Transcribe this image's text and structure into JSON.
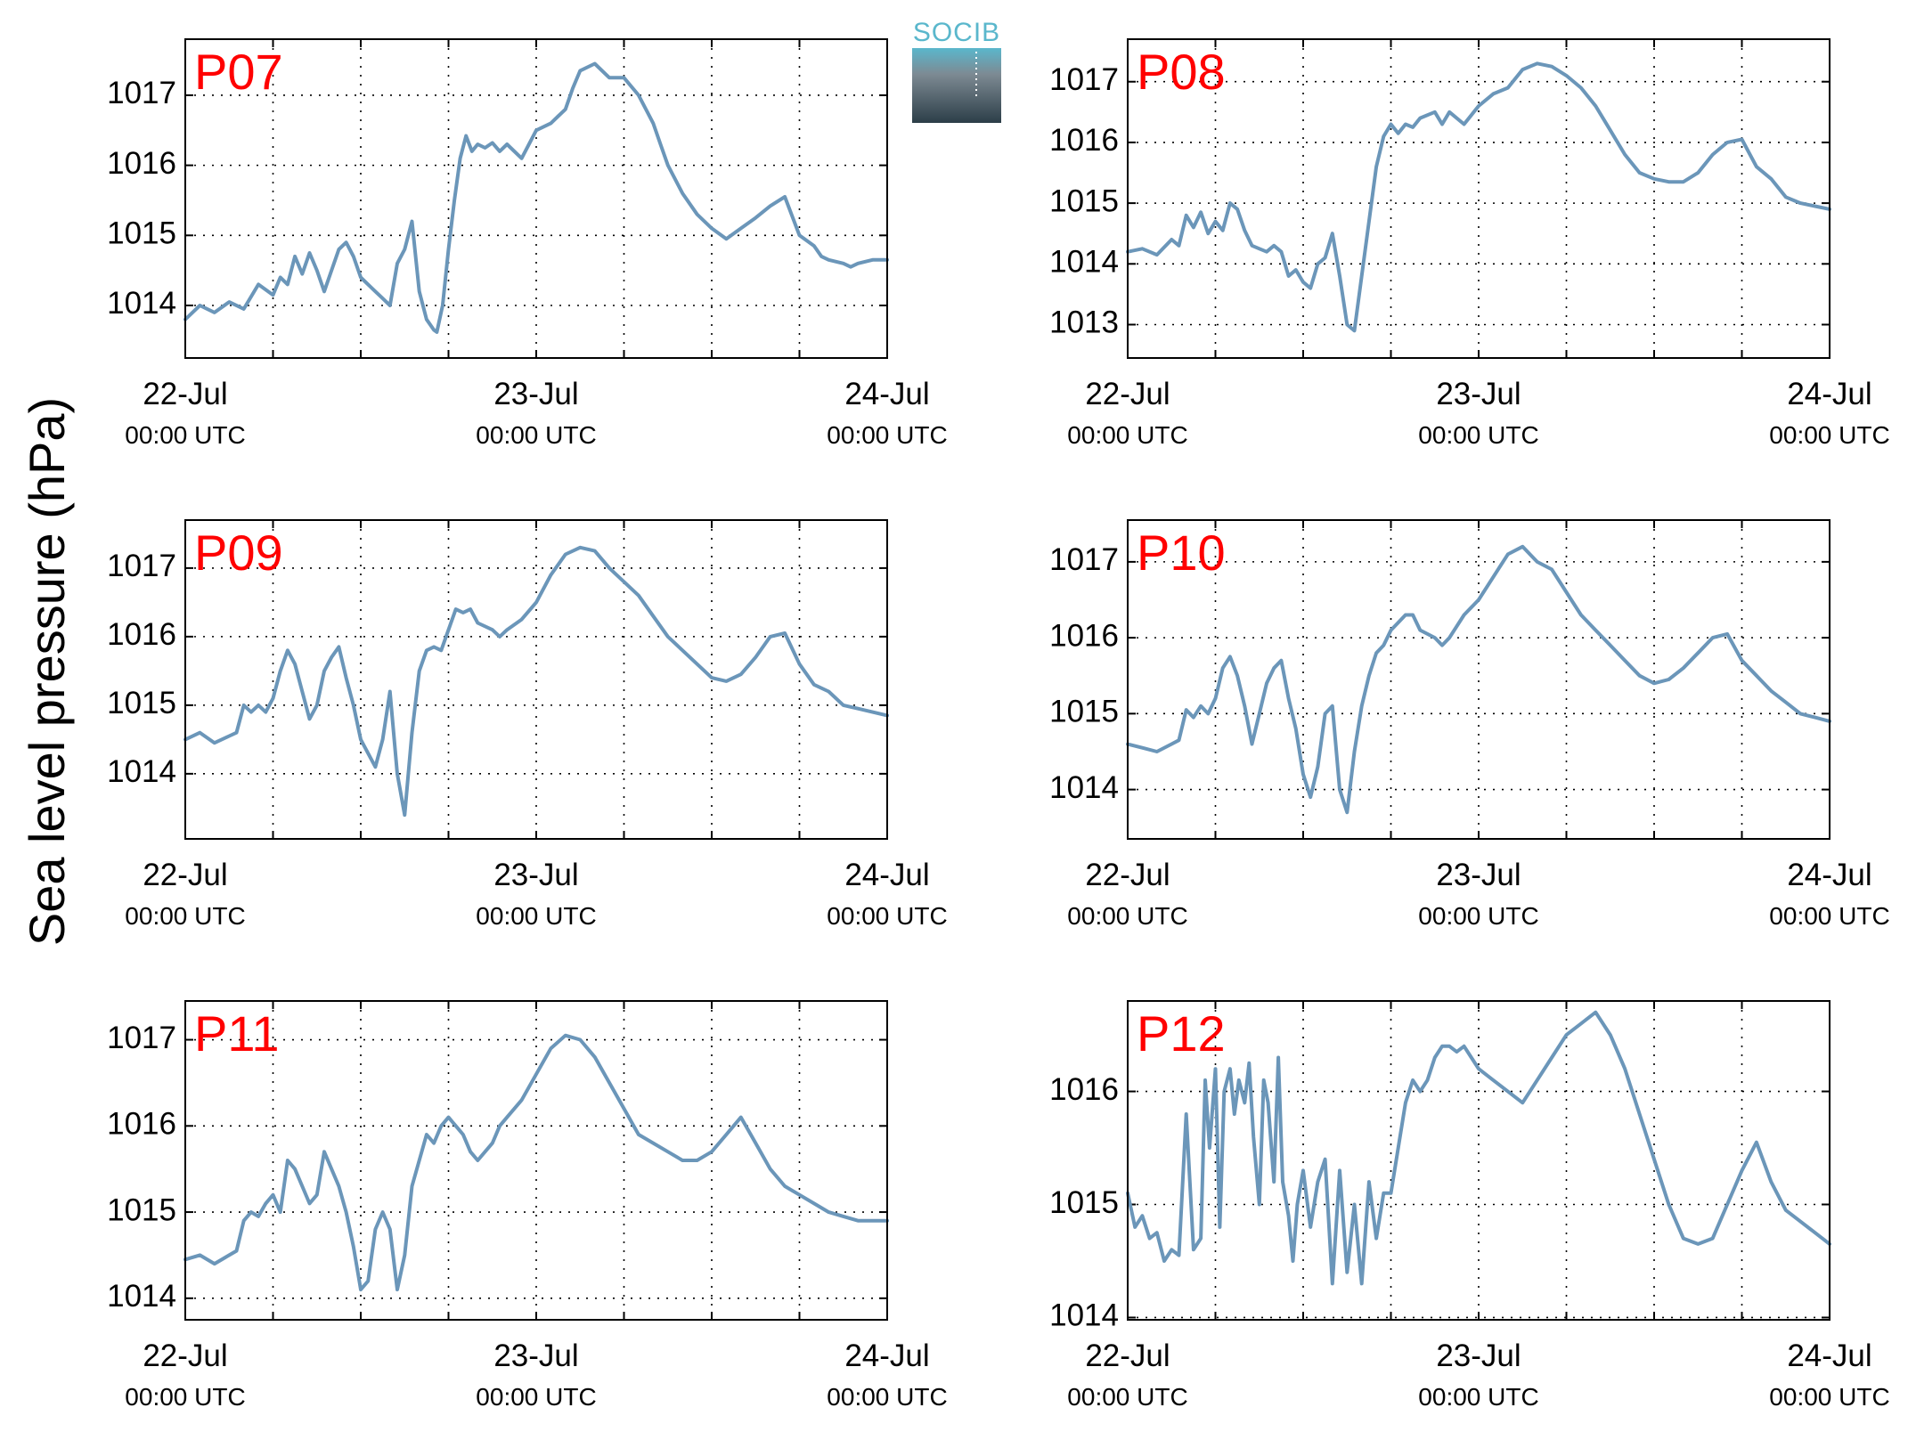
{
  "figure": {
    "ylabel": "Sea level pressure (hPa)",
    "logo": {
      "text": "SOCIB",
      "colors": [
        "#5ab7cc",
        "#7d8a93",
        "#2c3e48"
      ]
    }
  },
  "chart_data": [
    {
      "type": "line",
      "panel_label": "P07",
      "xlim": [
        0,
        48
      ],
      "ylim": [
        1013.25,
        1017.8
      ],
      "yticks": [
        1014,
        1015,
        1016,
        1017
      ],
      "xticks": [
        {
          "t": 0,
          "date": "22-Jul",
          "time": "00:00 UTC"
        },
        {
          "t": 24,
          "date": "23-Jul",
          "time": "00:00 UTC"
        },
        {
          "t": 48,
          "date": "24-Jul",
          "time": "00:00 UTC"
        }
      ],
      "xgrid_hours": [
        6,
        12,
        18,
        24,
        30,
        36,
        42
      ],
      "grid": true,
      "color": "#6b96b9",
      "x": [
        0,
        1,
        2,
        3,
        4,
        5,
        6,
        6.5,
        7,
        7.5,
        8,
        8.5,
        9,
        9.5,
        10,
        10.5,
        11,
        11.5,
        12,
        12.5,
        13,
        13.5,
        14,
        14.5,
        15,
        15.5,
        16,
        16.5,
        17,
        17.2,
        17.6,
        18,
        18.4,
        18.8,
        19.2,
        19.6,
        20,
        20.5,
        21,
        21.5,
        22,
        23,
        24,
        25,
        25.5,
        26,
        26.5,
        27,
        28,
        29,
        30,
        31,
        32,
        32.5,
        33,
        34,
        35,
        36,
        37,
        38,
        39,
        40,
        41,
        42,
        43,
        43.5,
        44,
        45,
        45.5,
        46,
        47,
        48
      ],
      "values": [
        1013.8,
        1014.0,
        1013.9,
        1014.05,
        1013.95,
        1014.3,
        1014.15,
        1014.4,
        1014.3,
        1014.7,
        1014.45,
        1014.75,
        1014.5,
        1014.2,
        1014.5,
        1014.8,
        1014.9,
        1014.7,
        1014.4,
        1014.3,
        1014.2,
        1014.1,
        1014.0,
        1014.6,
        1014.8,
        1015.2,
        1014.2,
        1013.8,
        1013.65,
        1013.62,
        1014.0,
        1014.8,
        1015.5,
        1016.1,
        1016.42,
        1016.2,
        1016.3,
        1016.25,
        1016.32,
        1016.2,
        1016.3,
        1016.1,
        1016.5,
        1016.6,
        1016.7,
        1016.8,
        1017.1,
        1017.35,
        1017.45,
        1017.25,
        1017.25,
        1017.0,
        1016.6,
        1016.3,
        1016.0,
        1015.6,
        1015.3,
        1015.1,
        1014.95,
        1015.1,
        1015.25,
        1015.42,
        1015.55,
        1015.0,
        1014.85,
        1014.7,
        1014.65,
        1014.6,
        1014.55,
        1014.6,
        1014.65,
        1014.65
      ]
    },
    {
      "type": "line",
      "panel_label": "P08",
      "xlim": [
        0,
        48
      ],
      "ylim": [
        1012.45,
        1017.7
      ],
      "yticks": [
        1013,
        1014,
        1015,
        1016,
        1017
      ],
      "xticks": [
        {
          "t": 0,
          "date": "22-Jul",
          "time": "00:00 UTC"
        },
        {
          "t": 24,
          "date": "23-Jul",
          "time": "00:00 UTC"
        },
        {
          "t": 48,
          "date": "24-Jul",
          "time": "00:00 UTC"
        }
      ],
      "xgrid_hours": [
        6,
        12,
        18,
        24,
        30,
        36,
        42
      ],
      "grid": true,
      "color": "#6b96b9",
      "x": [
        0,
        1,
        2,
        3,
        3.5,
        4,
        4.5,
        5,
        5.5,
        6,
        6.5,
        7,
        7.5,
        8,
        8.5,
        9,
        9.5,
        10,
        10.5,
        11,
        11.5,
        12,
        12.5,
        13,
        13.5,
        14,
        14.5,
        15,
        15.5,
        16,
        16.5,
        17,
        17.5,
        18,
        18.5,
        19,
        19.5,
        20,
        21,
        21.5,
        22,
        23,
        24,
        25,
        26,
        27,
        28,
        29,
        30,
        31,
        32,
        33,
        34,
        35,
        36,
        37,
        38,
        39,
        40,
        41,
        42,
        43,
        44,
        45,
        46,
        47,
        48
      ],
      "values": [
        1014.2,
        1014.25,
        1014.15,
        1014.4,
        1014.3,
        1014.8,
        1014.6,
        1014.85,
        1014.5,
        1014.7,
        1014.55,
        1015.0,
        1014.9,
        1014.55,
        1014.3,
        1014.25,
        1014.2,
        1014.3,
        1014.2,
        1013.8,
        1013.9,
        1013.7,
        1013.6,
        1014.0,
        1014.1,
        1014.5,
        1013.8,
        1013.0,
        1012.9,
        1013.8,
        1014.7,
        1015.6,
        1016.1,
        1016.3,
        1016.15,
        1016.3,
        1016.25,
        1016.4,
        1016.5,
        1016.3,
        1016.5,
        1016.3,
        1016.6,
        1016.8,
        1016.9,
        1017.2,
        1017.3,
        1017.25,
        1017.1,
        1016.9,
        1016.6,
        1016.2,
        1015.8,
        1015.5,
        1015.4,
        1015.35,
        1015.35,
        1015.5,
        1015.8,
        1016.0,
        1016.05,
        1015.6,
        1015.4,
        1015.1,
        1015.0,
        1014.95,
        1014.9
      ]
    },
    {
      "type": "line",
      "panel_label": "P09",
      "xlim": [
        0,
        48
      ],
      "ylim": [
        1013.05,
        1017.7
      ],
      "yticks": [
        1014,
        1015,
        1016,
        1017
      ],
      "xticks": [
        {
          "t": 0,
          "date": "22-Jul",
          "time": "00:00 UTC"
        },
        {
          "t": 24,
          "date": "23-Jul",
          "time": "00:00 UTC"
        },
        {
          "t": 48,
          "date": "24-Jul",
          "time": "00:00 UTC"
        }
      ],
      "xgrid_hours": [
        6,
        12,
        18,
        24,
        30,
        36,
        42
      ],
      "grid": true,
      "color": "#6b96b9",
      "x": [
        0,
        1,
        2,
        3,
        3.5,
        4,
        4.5,
        5,
        5.5,
        6,
        6.5,
        7,
        7.5,
        8,
        8.5,
        9,
        9.5,
        10,
        10.5,
        11,
        11.5,
        12,
        12.5,
        13,
        13.5,
        14,
        14.5,
        15,
        15.5,
        16,
        16.5,
        17,
        17.5,
        18,
        18.5,
        19,
        19.5,
        20,
        21,
        21.5,
        22,
        23,
        24,
        25,
        26,
        27,
        28,
        29,
        30,
        31,
        32,
        33,
        34,
        35,
        36,
        37,
        38,
        39,
        40,
        41,
        42,
        43,
        44,
        45,
        46,
        47,
        48
      ],
      "values": [
        1014.5,
        1014.6,
        1014.45,
        1014.55,
        1014.6,
        1015.0,
        1014.9,
        1015.0,
        1014.9,
        1015.1,
        1015.5,
        1015.8,
        1015.6,
        1015.2,
        1014.8,
        1015.0,
        1015.5,
        1015.7,
        1015.85,
        1015.4,
        1015.0,
        1014.5,
        1014.3,
        1014.1,
        1014.5,
        1015.2,
        1014.0,
        1013.4,
        1014.6,
        1015.5,
        1015.8,
        1015.85,
        1015.8,
        1016.1,
        1016.4,
        1016.35,
        1016.4,
        1016.2,
        1016.1,
        1016.0,
        1016.1,
        1016.25,
        1016.5,
        1016.9,
        1017.2,
        1017.3,
        1017.25,
        1017.0,
        1016.8,
        1016.6,
        1016.3,
        1016.0,
        1015.8,
        1015.6,
        1015.4,
        1015.35,
        1015.45,
        1015.7,
        1016.0,
        1016.05,
        1015.6,
        1015.3,
        1015.2,
        1015.0,
        1014.95,
        1014.9,
        1014.85
      ]
    },
    {
      "type": "line",
      "panel_label": "P10",
      "xlim": [
        0,
        48
      ],
      "ylim": [
        1013.35,
        1017.55
      ],
      "yticks": [
        1014,
        1015,
        1016,
        1017
      ],
      "xticks": [
        {
          "t": 0,
          "date": "22-Jul",
          "time": "00:00 UTC"
        },
        {
          "t": 24,
          "date": "23-Jul",
          "time": "00:00 UTC"
        },
        {
          "t": 48,
          "date": "24-Jul",
          "time": "00:00 UTC"
        }
      ],
      "xgrid_hours": [
        6,
        12,
        18,
        24,
        30,
        36,
        42
      ],
      "grid": true,
      "color": "#6b96b9",
      "x": [
        0,
        1,
        2,
        3,
        3.5,
        4,
        4.5,
        5,
        5.5,
        6,
        6.5,
        7,
        7.5,
        8,
        8.5,
        9,
        9.5,
        10,
        10.5,
        11,
        11.5,
        12,
        12.5,
        13,
        13.5,
        14,
        14.5,
        15,
        15.5,
        16,
        16.5,
        17,
        17.5,
        18,
        18.5,
        19,
        19.5,
        20,
        21,
        21.5,
        22,
        23,
        24,
        25,
        26,
        27,
        28,
        29,
        30,
        31,
        32,
        33,
        34,
        35,
        36,
        37,
        38,
        39,
        40,
        41,
        42,
        43,
        44,
        45,
        46,
        47,
        48
      ],
      "values": [
        1014.6,
        1014.55,
        1014.5,
        1014.6,
        1014.65,
        1015.05,
        1014.95,
        1015.1,
        1015.0,
        1015.2,
        1015.6,
        1015.75,
        1015.5,
        1015.1,
        1014.6,
        1015.0,
        1015.4,
        1015.6,
        1015.7,
        1015.2,
        1014.8,
        1014.2,
        1013.9,
        1014.3,
        1015.0,
        1015.1,
        1014.0,
        1013.7,
        1014.5,
        1015.1,
        1015.5,
        1015.8,
        1015.9,
        1016.1,
        1016.2,
        1016.3,
        1016.3,
        1016.1,
        1016.0,
        1015.9,
        1016.0,
        1016.3,
        1016.5,
        1016.8,
        1017.1,
        1017.2,
        1017.0,
        1016.9,
        1016.6,
        1016.3,
        1016.1,
        1015.9,
        1015.7,
        1015.5,
        1015.4,
        1015.45,
        1015.6,
        1015.8,
        1016.0,
        1016.05,
        1015.7,
        1015.5,
        1015.3,
        1015.15,
        1015.0,
        1014.95,
        1014.9
      ]
    },
    {
      "type": "line",
      "panel_label": "P11",
      "xlim": [
        0,
        48
      ],
      "ylim": [
        1013.75,
        1017.45
      ],
      "yticks": [
        1014,
        1015,
        1016,
        1017
      ],
      "xticks": [
        {
          "t": 0,
          "date": "22-Jul",
          "time": "00:00 UTC"
        },
        {
          "t": 24,
          "date": "23-Jul",
          "time": "00:00 UTC"
        },
        {
          "t": 48,
          "date": "24-Jul",
          "time": "00:00 UTC"
        }
      ],
      "xgrid_hours": [
        6,
        12,
        18,
        24,
        30,
        36,
        42
      ],
      "grid": true,
      "color": "#6b96b9",
      "x": [
        0,
        1,
        2,
        3,
        3.5,
        4,
        4.5,
        5,
        5.5,
        6,
        6.5,
        7,
        7.5,
        8,
        8.5,
        9,
        9.5,
        10,
        10.5,
        11,
        11.5,
        12,
        12.5,
        13,
        13.5,
        14,
        14.5,
        15,
        15.5,
        16,
        16.5,
        17,
        17.5,
        18,
        18.5,
        19,
        19.5,
        20,
        21,
        21.5,
        22,
        23,
        24,
        25,
        26,
        27,
        28,
        29,
        30,
        31,
        32,
        33,
        34,
        35,
        36,
        37,
        38,
        39,
        40,
        41,
        42,
        43,
        44,
        45,
        46,
        47,
        48
      ],
      "values": [
        1014.45,
        1014.5,
        1014.4,
        1014.5,
        1014.55,
        1014.9,
        1015.0,
        1014.95,
        1015.1,
        1015.2,
        1015.0,
        1015.6,
        1015.5,
        1015.3,
        1015.1,
        1015.2,
        1015.7,
        1015.5,
        1015.3,
        1015.0,
        1014.6,
        1014.1,
        1014.2,
        1014.8,
        1015.0,
        1014.8,
        1014.1,
        1014.5,
        1015.3,
        1015.6,
        1015.9,
        1015.8,
        1016.0,
        1016.1,
        1016.0,
        1015.9,
        1015.7,
        1015.6,
        1015.8,
        1016.0,
        1016.1,
        1016.3,
        1016.6,
        1016.9,
        1017.05,
        1017.0,
        1016.8,
        1016.5,
        1016.2,
        1015.9,
        1015.8,
        1015.7,
        1015.6,
        1015.6,
        1015.7,
        1015.9,
        1016.1,
        1015.8,
        1015.5,
        1015.3,
        1015.2,
        1015.1,
        1015.0,
        1014.95,
        1014.9,
        1014.9,
        1014.9
      ]
    },
    {
      "type": "line",
      "panel_label": "P12",
      "xlim": [
        0,
        48
      ],
      "ylim": [
        1013.98,
        1016.8
      ],
      "yticks": [
        1014,
        1015,
        1016
      ],
      "xticks": [
        {
          "t": 0,
          "date": "22-Jul",
          "time": "00:00 UTC"
        },
        {
          "t": 24,
          "date": "23-Jul",
          "time": "00:00 UTC"
        },
        {
          "t": 48,
          "date": "24-Jul",
          "time": "00:00 UTC"
        }
      ],
      "xgrid_hours": [
        6,
        12,
        18,
        24,
        30,
        36,
        42
      ],
      "grid": true,
      "color": "#6b96b9",
      "x": [
        0,
        0.5,
        1,
        1.5,
        2,
        2.5,
        3,
        3.5,
        4,
        4.5,
        5,
        5.3,
        5.6,
        6,
        6.3,
        6.6,
        7,
        7.3,
        7.6,
        8,
        8.3,
        8.6,
        9,
        9.3,
        9.6,
        10,
        10.3,
        10.6,
        11,
        11.3,
        11.6,
        12,
        12.5,
        13,
        13.5,
        14,
        14.5,
        15,
        15.5,
        16,
        16.5,
        17,
        17.5,
        18,
        18.5,
        19,
        19.5,
        20,
        20.5,
        21,
        21.5,
        22,
        22.5,
        23,
        23.5,
        24,
        25,
        26,
        27,
        28,
        29,
        30,
        31,
        32,
        33,
        34,
        35,
        36,
        37,
        38,
        39,
        40,
        41,
        42,
        43,
        44,
        45,
        46,
        47,
        48
      ],
      "values": [
        1015.1,
        1014.8,
        1014.9,
        1014.7,
        1014.75,
        1014.5,
        1014.6,
        1014.55,
        1015.8,
        1014.6,
        1014.7,
        1016.1,
        1015.5,
        1016.2,
        1014.8,
        1016.0,
        1016.2,
        1015.8,
        1016.1,
        1015.9,
        1016.25,
        1015.6,
        1015.0,
        1016.1,
        1015.9,
        1015.2,
        1016.3,
        1015.2,
        1014.9,
        1014.5,
        1015.0,
        1015.3,
        1014.8,
        1015.2,
        1015.4,
        1014.3,
        1015.3,
        1014.4,
        1015.0,
        1014.3,
        1015.2,
        1014.7,
        1015.1,
        1015.1,
        1015.5,
        1015.9,
        1016.1,
        1016.0,
        1016.1,
        1016.3,
        1016.4,
        1016.4,
        1016.35,
        1016.4,
        1016.3,
        1016.2,
        1016.1,
        1016.0,
        1015.9,
        1016.1,
        1016.3,
        1016.5,
        1016.6,
        1016.7,
        1016.5,
        1016.2,
        1015.8,
        1015.4,
        1015.0,
        1014.7,
        1014.65,
        1014.7,
        1015.0,
        1015.3,
        1015.55,
        1015.2,
        1014.95,
        1014.85,
        1014.75,
        1014.65
      ]
    }
  ]
}
